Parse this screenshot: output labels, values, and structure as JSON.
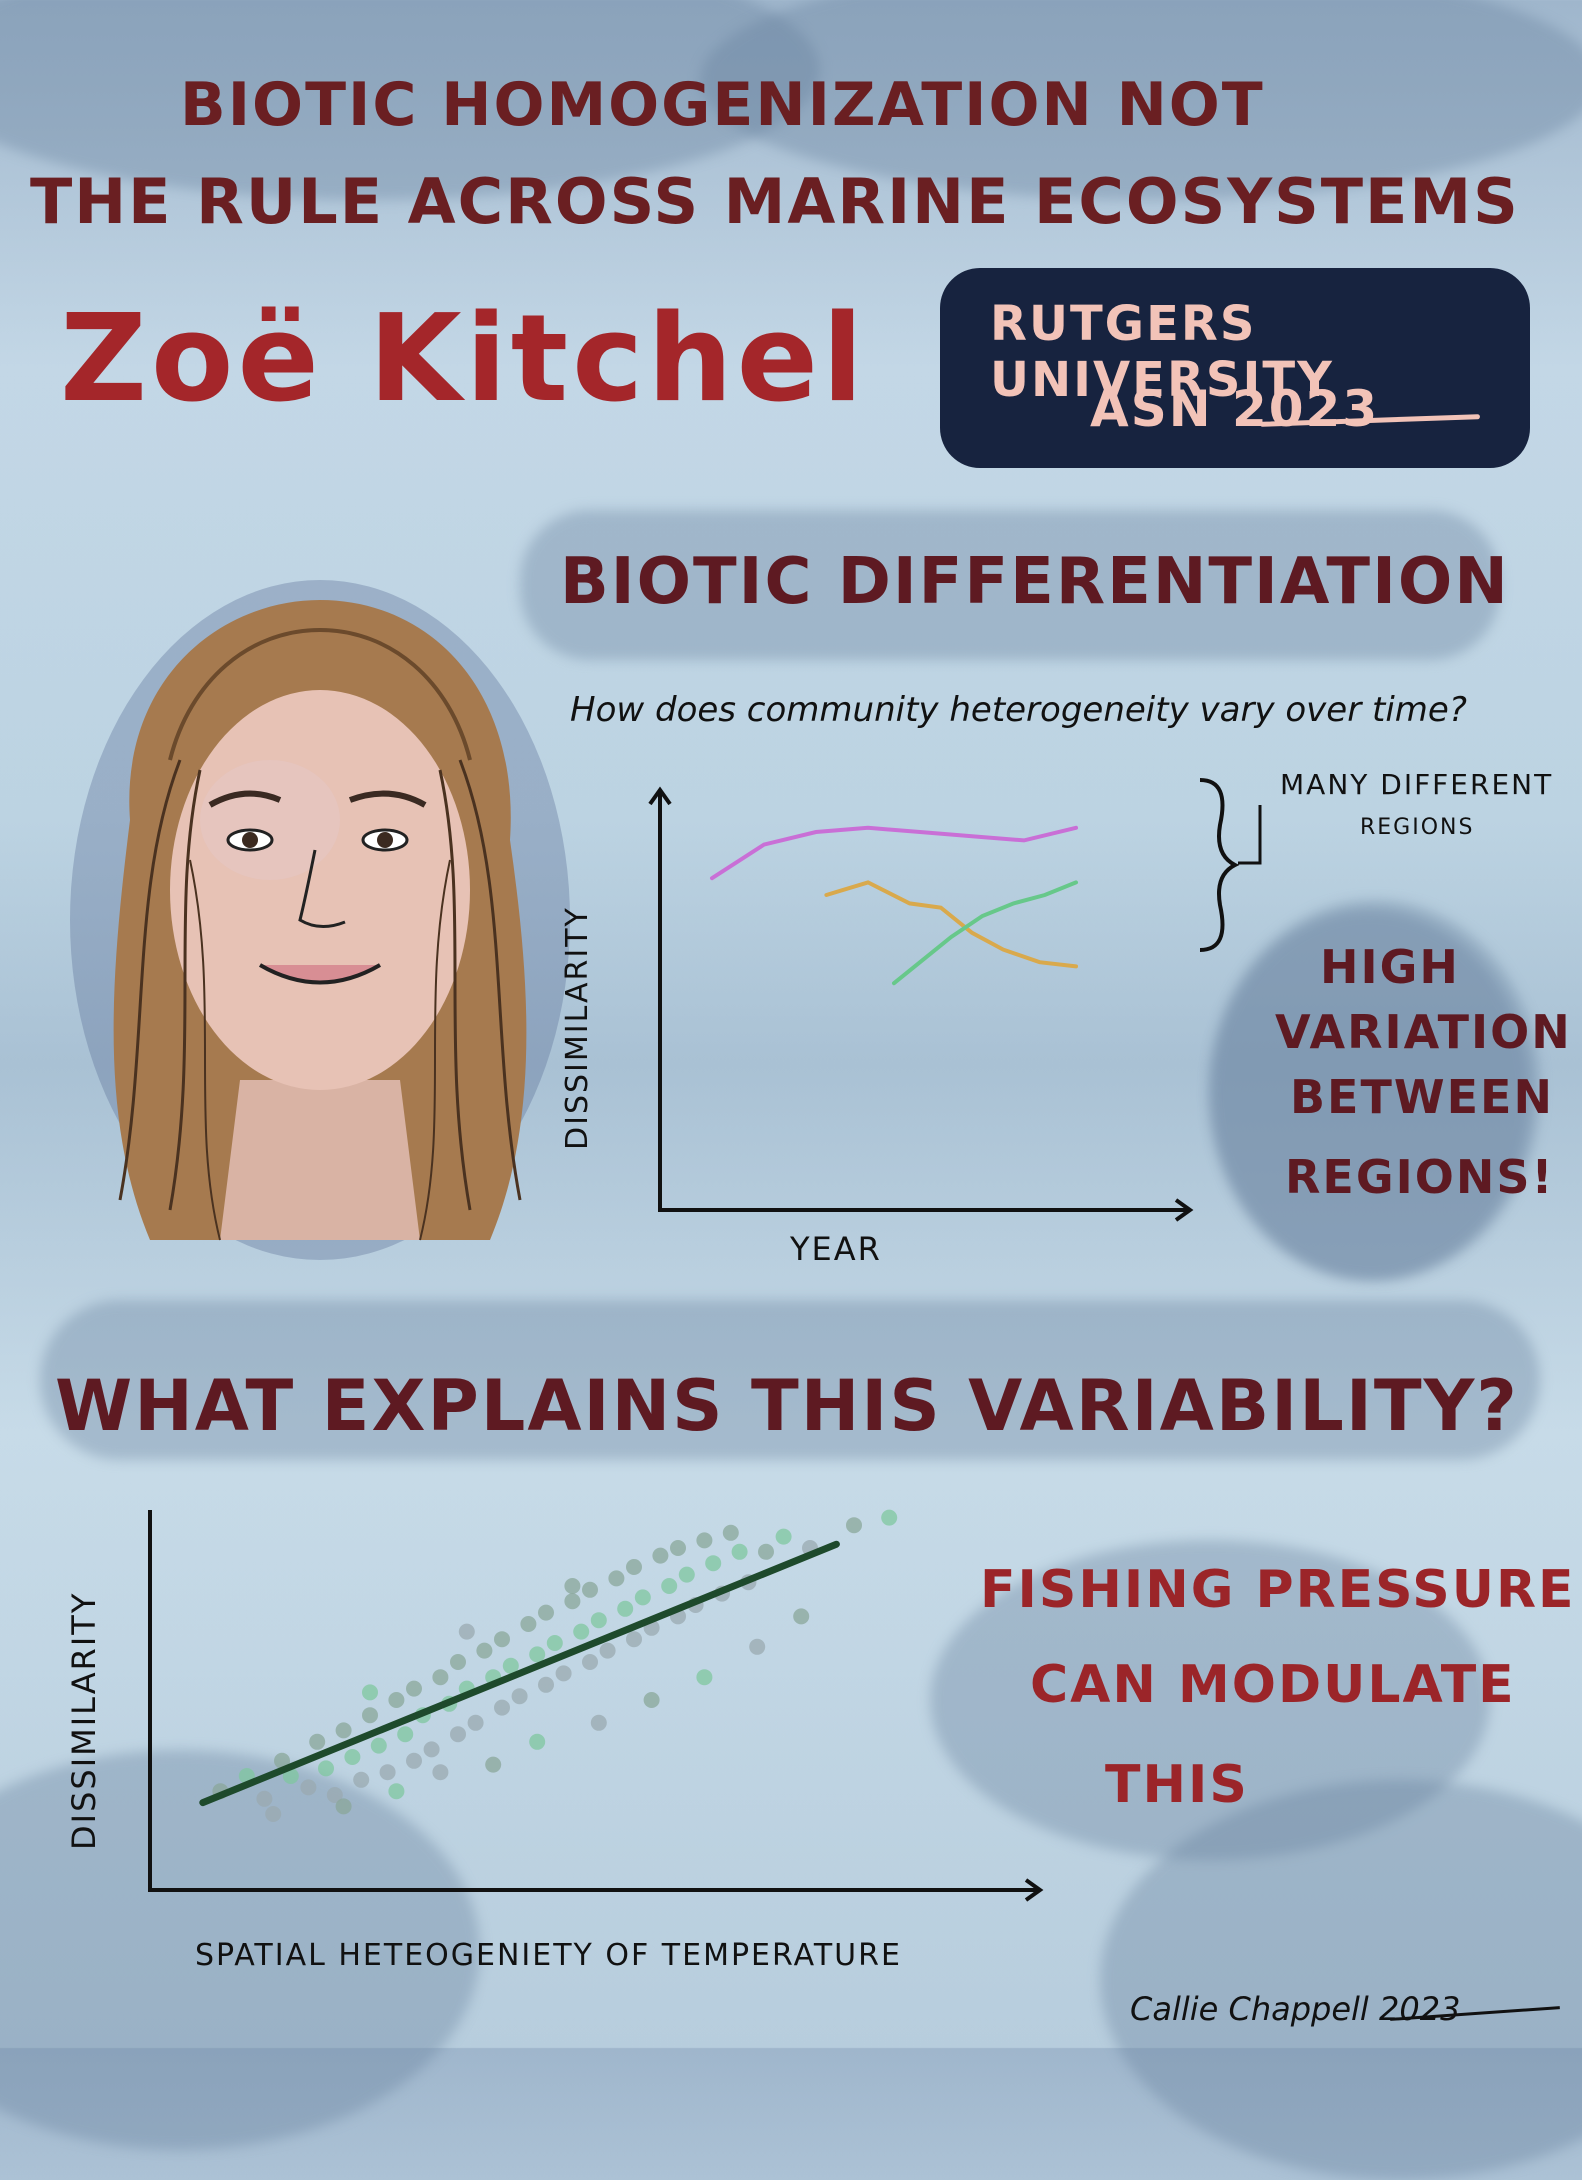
{
  "title": {
    "line1": "BIOTIC HOMOGENIZATION NOT",
    "line2": "THE RULE ACROSS MARINE ECOSYSTEMS"
  },
  "speaker": {
    "name": "Zoë Kitchel",
    "affiliation": "RUTGERS UNIVERSITY",
    "event": "ASN 2023"
  },
  "section1": {
    "heading": "BIOTIC DIFFERENTIATION",
    "question": "How does community heterogeneity vary over time?",
    "regions_note_1": "MANY DIFFERENT",
    "regions_note_2": "REGIONS",
    "callout": [
      "HIGH",
      "VARIATION",
      "BETWEEN",
      "REGIONS!"
    ]
  },
  "section2": {
    "heading": "WHAT EXPLAINS THIS VARIABILITY?",
    "callout": [
      "FISHING PRESSURE",
      "CAN MODULATE",
      "THIS"
    ]
  },
  "signature": "Callie Chappell 2023",
  "colors": {
    "title": "#6a1f22",
    "accent": "#a4262a",
    "badge": "#17233f",
    "badge_text": "#f2c3b8",
    "series_purple": "#c96fd6",
    "series_orange": "#d9a94c",
    "series_green": "#67c88a",
    "fit_line": "#1e4a2c"
  },
  "chart_data": [
    {
      "type": "line",
      "xlabel": "YEAR",
      "ylabel": "DISSIMILARITY",
      "x": [
        1,
        2,
        3,
        4,
        5,
        6,
        7,
        8
      ],
      "xlim": [
        0,
        10
      ],
      "ylim": [
        0,
        10
      ],
      "series": [
        {
          "color": "#c96fd6",
          "x": [
            1,
            2,
            3,
            4,
            5,
            6,
            7,
            8
          ],
          "values": [
            7.9,
            8.7,
            9.0,
            9.1,
            9.0,
            8.9,
            8.8,
            9.1
          ]
        },
        {
          "color": "#d9a94c",
          "x": [
            3.2,
            4,
            4.8,
            5.4,
            6,
            6.6,
            7.3,
            8
          ],
          "values": [
            7.5,
            7.8,
            7.3,
            7.2,
            6.6,
            6.2,
            5.9,
            5.8
          ]
        },
        {
          "color": "#67c88a",
          "x": [
            4.5,
            5,
            5.6,
            6.2,
            6.8,
            7.4,
            8
          ],
          "values": [
            5.4,
            5.9,
            6.5,
            7.0,
            7.3,
            7.5,
            7.8
          ]
        }
      ]
    },
    {
      "type": "scatter",
      "xlabel": "SPATIAL HETEOGENIETY OF TEMPERATURE",
      "ylabel": "DISSIMILARITY",
      "xlim": [
        0,
        10
      ],
      "ylim": [
        0,
        10
      ],
      "trend": {
        "x": [
          0.6,
          7.8
        ],
        "y": [
          2.3,
          9.1
        ],
        "color": "#1e4a2c"
      },
      "points_x": [
        0.8,
        1.1,
        1.3,
        1.5,
        1.6,
        1.8,
        1.9,
        2.0,
        2.1,
        2.2,
        2.3,
        2.4,
        2.5,
        2.6,
        2.7,
        2.8,
        2.9,
        3.0,
        3.0,
        3.1,
        3.2,
        3.3,
        3.4,
        3.5,
        3.5,
        3.6,
        3.7,
        3.8,
        3.9,
        4.0,
        4.0,
        4.1,
        4.2,
        4.3,
        4.4,
        4.5,
        4.5,
        4.6,
        4.7,
        4.8,
        4.9,
        5.0,
        5.0,
        5.1,
        5.2,
        5.3,
        5.4,
        5.5,
        5.5,
        5.6,
        5.7,
        5.8,
        5.9,
        6.0,
        6.0,
        6.1,
        6.2,
        6.3,
        6.4,
        6.5,
        6.6,
        6.7,
        6.8,
        7.0,
        7.2,
        7.5,
        8.0,
        8.4,
        1.4,
        2.2,
        2.8,
        3.3,
        3.9,
        4.4,
        5.1,
        5.7,
        6.3,
        6.9,
        7.4,
        2.5,
        3.6,
        4.8
      ],
      "points_y": [
        2.6,
        3.0,
        2.4,
        3.4,
        3.0,
        2.7,
        3.9,
        3.2,
        2.5,
        4.2,
        3.5,
        2.9,
        4.6,
        3.8,
        3.1,
        5.0,
        4.1,
        3.4,
        5.3,
        4.6,
        3.7,
        5.6,
        4.9,
        4.1,
        6.0,
        5.3,
        4.4,
        6.3,
        5.6,
        4.8,
        6.6,
        5.9,
        5.1,
        7.0,
        6.2,
        5.4,
        7.3,
        6.5,
        5.7,
        7.6,
        6.8,
        6.0,
        7.9,
        7.1,
        6.3,
        8.2,
        7.4,
        6.6,
        8.5,
        7.7,
        6.9,
        8.8,
        8.0,
        7.2,
        9.0,
        8.3,
        7.5,
        9.2,
        8.6,
        7.8,
        9.4,
        8.9,
        8.1,
        8.9,
        9.3,
        9.0,
        9.6,
        9.8,
        2.0,
        2.2,
        2.6,
        3.1,
        3.3,
        3.9,
        4.4,
        5.0,
        5.6,
        6.4,
        7.2,
        5.2,
        6.8,
        8.0
      ]
    }
  ]
}
